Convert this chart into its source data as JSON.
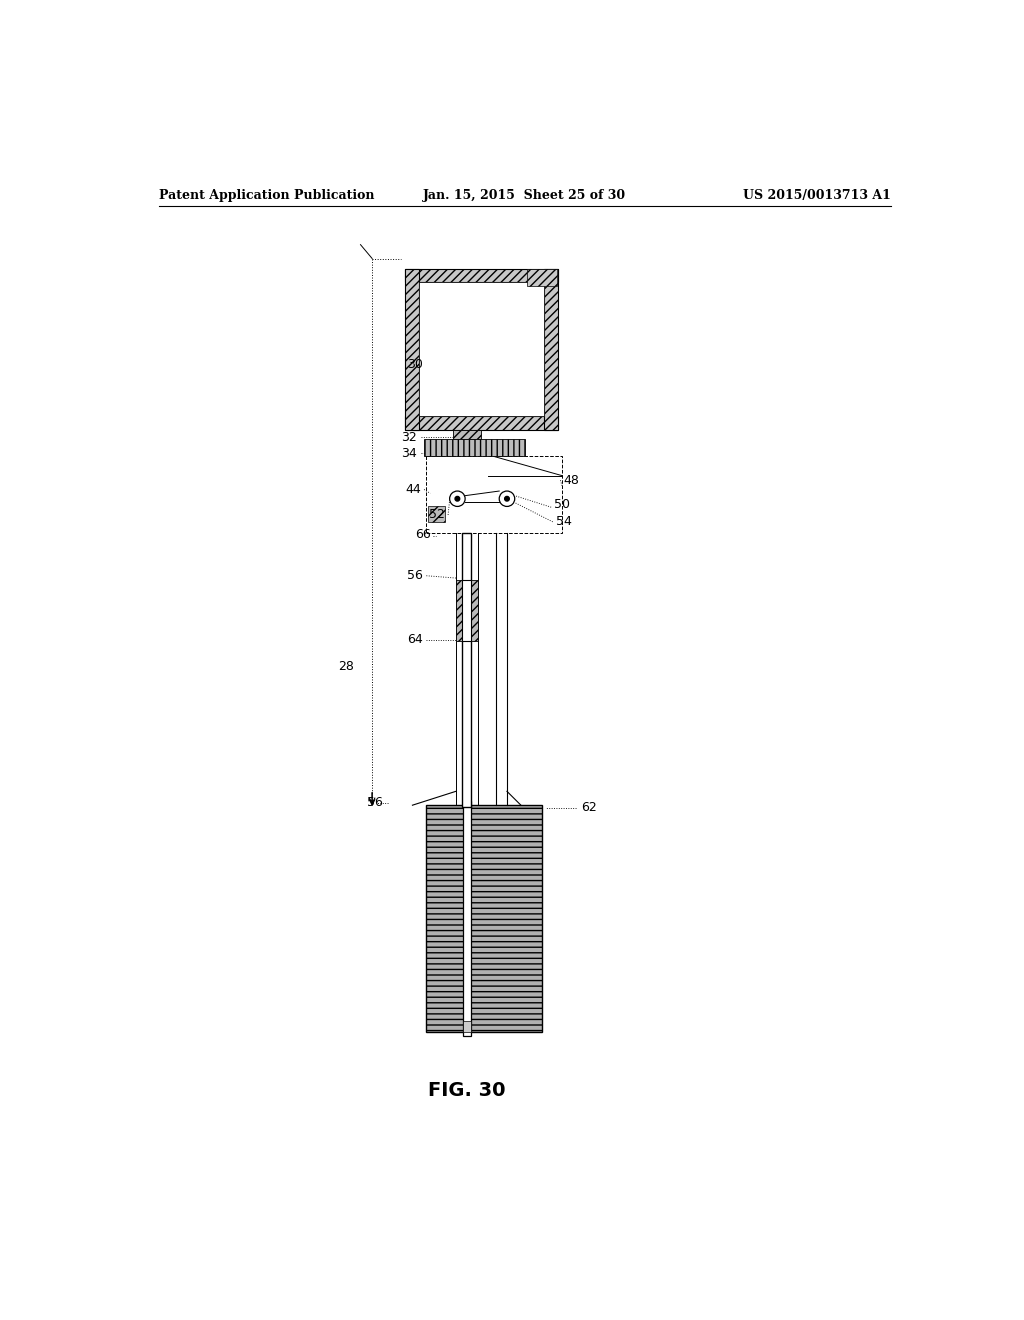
{
  "header_left": "Patent Application Publication",
  "header_center": "Jan. 15, 2015  Sheet 25 of 30",
  "header_right": "US 2015/0013713 A1",
  "fig_label": "FIG. 30",
  "bg_color": "#ffffff",
  "lc": "#000000"
}
